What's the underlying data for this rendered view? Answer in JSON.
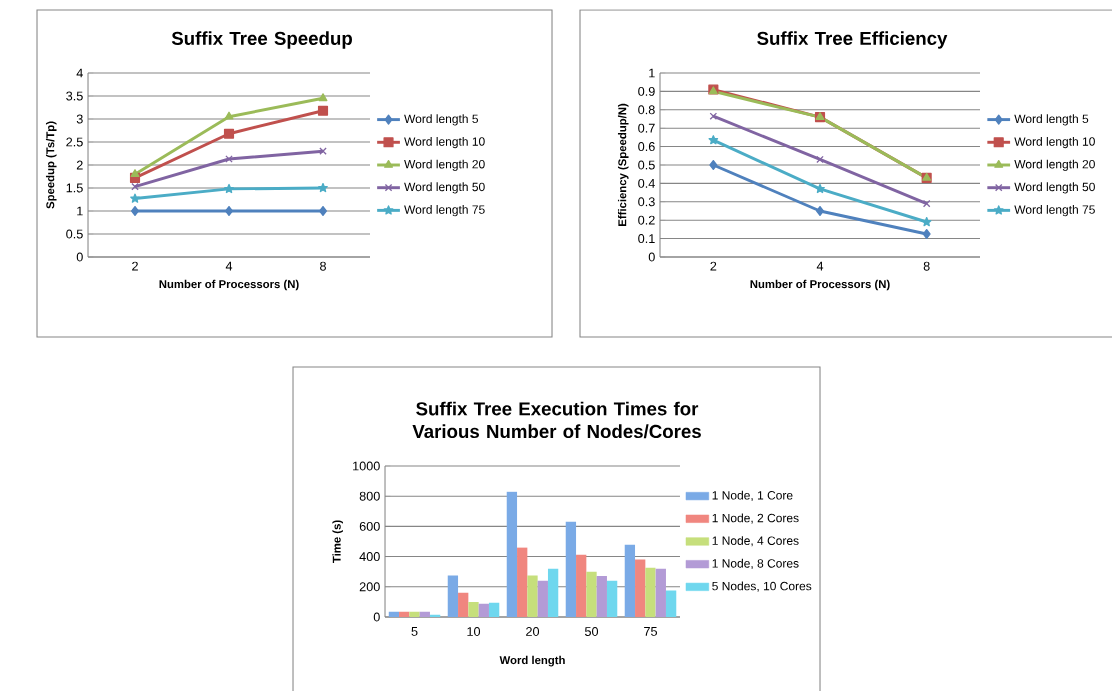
{
  "chart_data": [
    {
      "type": "line",
      "title": "Suffix Tree Speedup",
      "xlabel": "Number of Processors (N)",
      "ylabel": "Speedup (Ts/Tp)",
      "categories": [
        "2",
        "4",
        "8"
      ],
      "ylim": [
        0,
        4
      ],
      "yticks": [
        0,
        0.5,
        1,
        1.5,
        2,
        2.5,
        3,
        3.5,
        4
      ],
      "grid": "y",
      "legend": "right",
      "series": [
        {
          "name": "Word length 5",
          "color": "#4f81bd",
          "marker": "diamond",
          "values": [
            1,
            1,
            1
          ]
        },
        {
          "name": "Word length 10",
          "color": "#c0504d",
          "marker": "square",
          "values": [
            1.72,
            2.68,
            3.18
          ]
        },
        {
          "name": "Word length 20",
          "color": "#9bbb59",
          "marker": "triangle",
          "values": [
            1.8,
            3.05,
            3.45
          ]
        },
        {
          "name": "Word length 50",
          "color": "#8064a2",
          "marker": "cross",
          "values": [
            1.53,
            2.13,
            2.3
          ]
        },
        {
          "name": "Word length 75",
          "color": "#4bacc6",
          "marker": "star",
          "values": [
            1.27,
            1.48,
            1.5
          ]
        }
      ]
    },
    {
      "type": "line",
      "title": "Suffix Tree Efficiency",
      "xlabel": "Number of Processors (N)",
      "ylabel": "Efficiency (Speedup/N)",
      "categories": [
        "2",
        "4",
        "8"
      ],
      "ylim": [
        0,
        1
      ],
      "yticks": [
        0,
        0.1,
        0.2,
        0.3,
        0.4,
        0.5,
        0.6,
        0.7,
        0.8,
        0.9,
        1
      ],
      "grid": "y",
      "legend": "right",
      "series": [
        {
          "name": "Word length 5",
          "color": "#4f81bd",
          "marker": "diamond",
          "values": [
            0.5,
            0.25,
            0.125
          ]
        },
        {
          "name": "Word length 10",
          "color": "#c0504d",
          "marker": "square",
          "values": [
            0.91,
            0.76,
            0.43
          ]
        },
        {
          "name": "Word length 20",
          "color": "#9bbb59",
          "marker": "triangle",
          "values": [
            0.9,
            0.76,
            0.43
          ]
        },
        {
          "name": "Word length 50",
          "color": "#8064a2",
          "marker": "cross",
          "values": [
            0.765,
            0.53,
            0.29
          ]
        },
        {
          "name": "Word length 75",
          "color": "#4bacc6",
          "marker": "star",
          "values": [
            0.635,
            0.37,
            0.19
          ]
        }
      ]
    },
    {
      "type": "bar",
      "title": "Suffix Tree Execution Times for Various Number of Nodes/Cores",
      "xlabel": "Word length",
      "ylabel": "Time (s)",
      "categories": [
        "5",
        "10",
        "20",
        "50",
        "75"
      ],
      "ylim": [
        0,
        1000
      ],
      "yticks": [
        0,
        200,
        400,
        600,
        800,
        1000
      ],
      "grid": "y",
      "legend": "right",
      "series": [
        {
          "name": "1 Node, 1 Core",
          "color": "#7aaae6",
          "values": [
            35,
            275,
            830,
            630,
            478
          ]
        },
        {
          "name": "1 Node, 2 Cores",
          "color": "#f0867f",
          "values": [
            35,
            160,
            460,
            412,
            380
          ]
        },
        {
          "name": "1 Node, 4 Cores",
          "color": "#c6df7c",
          "values": [
            35,
            100,
            275,
            300,
            328
          ]
        },
        {
          "name": "1 Node, 8 Cores",
          "color": "#b39bd6",
          "values": [
            35,
            88,
            240,
            272,
            320
          ]
        },
        {
          "name": "5 Nodes, 10 Cores",
          "color": "#6fd7ee",
          "values": [
            15,
            95,
            320,
            240,
            175
          ]
        }
      ]
    }
  ]
}
